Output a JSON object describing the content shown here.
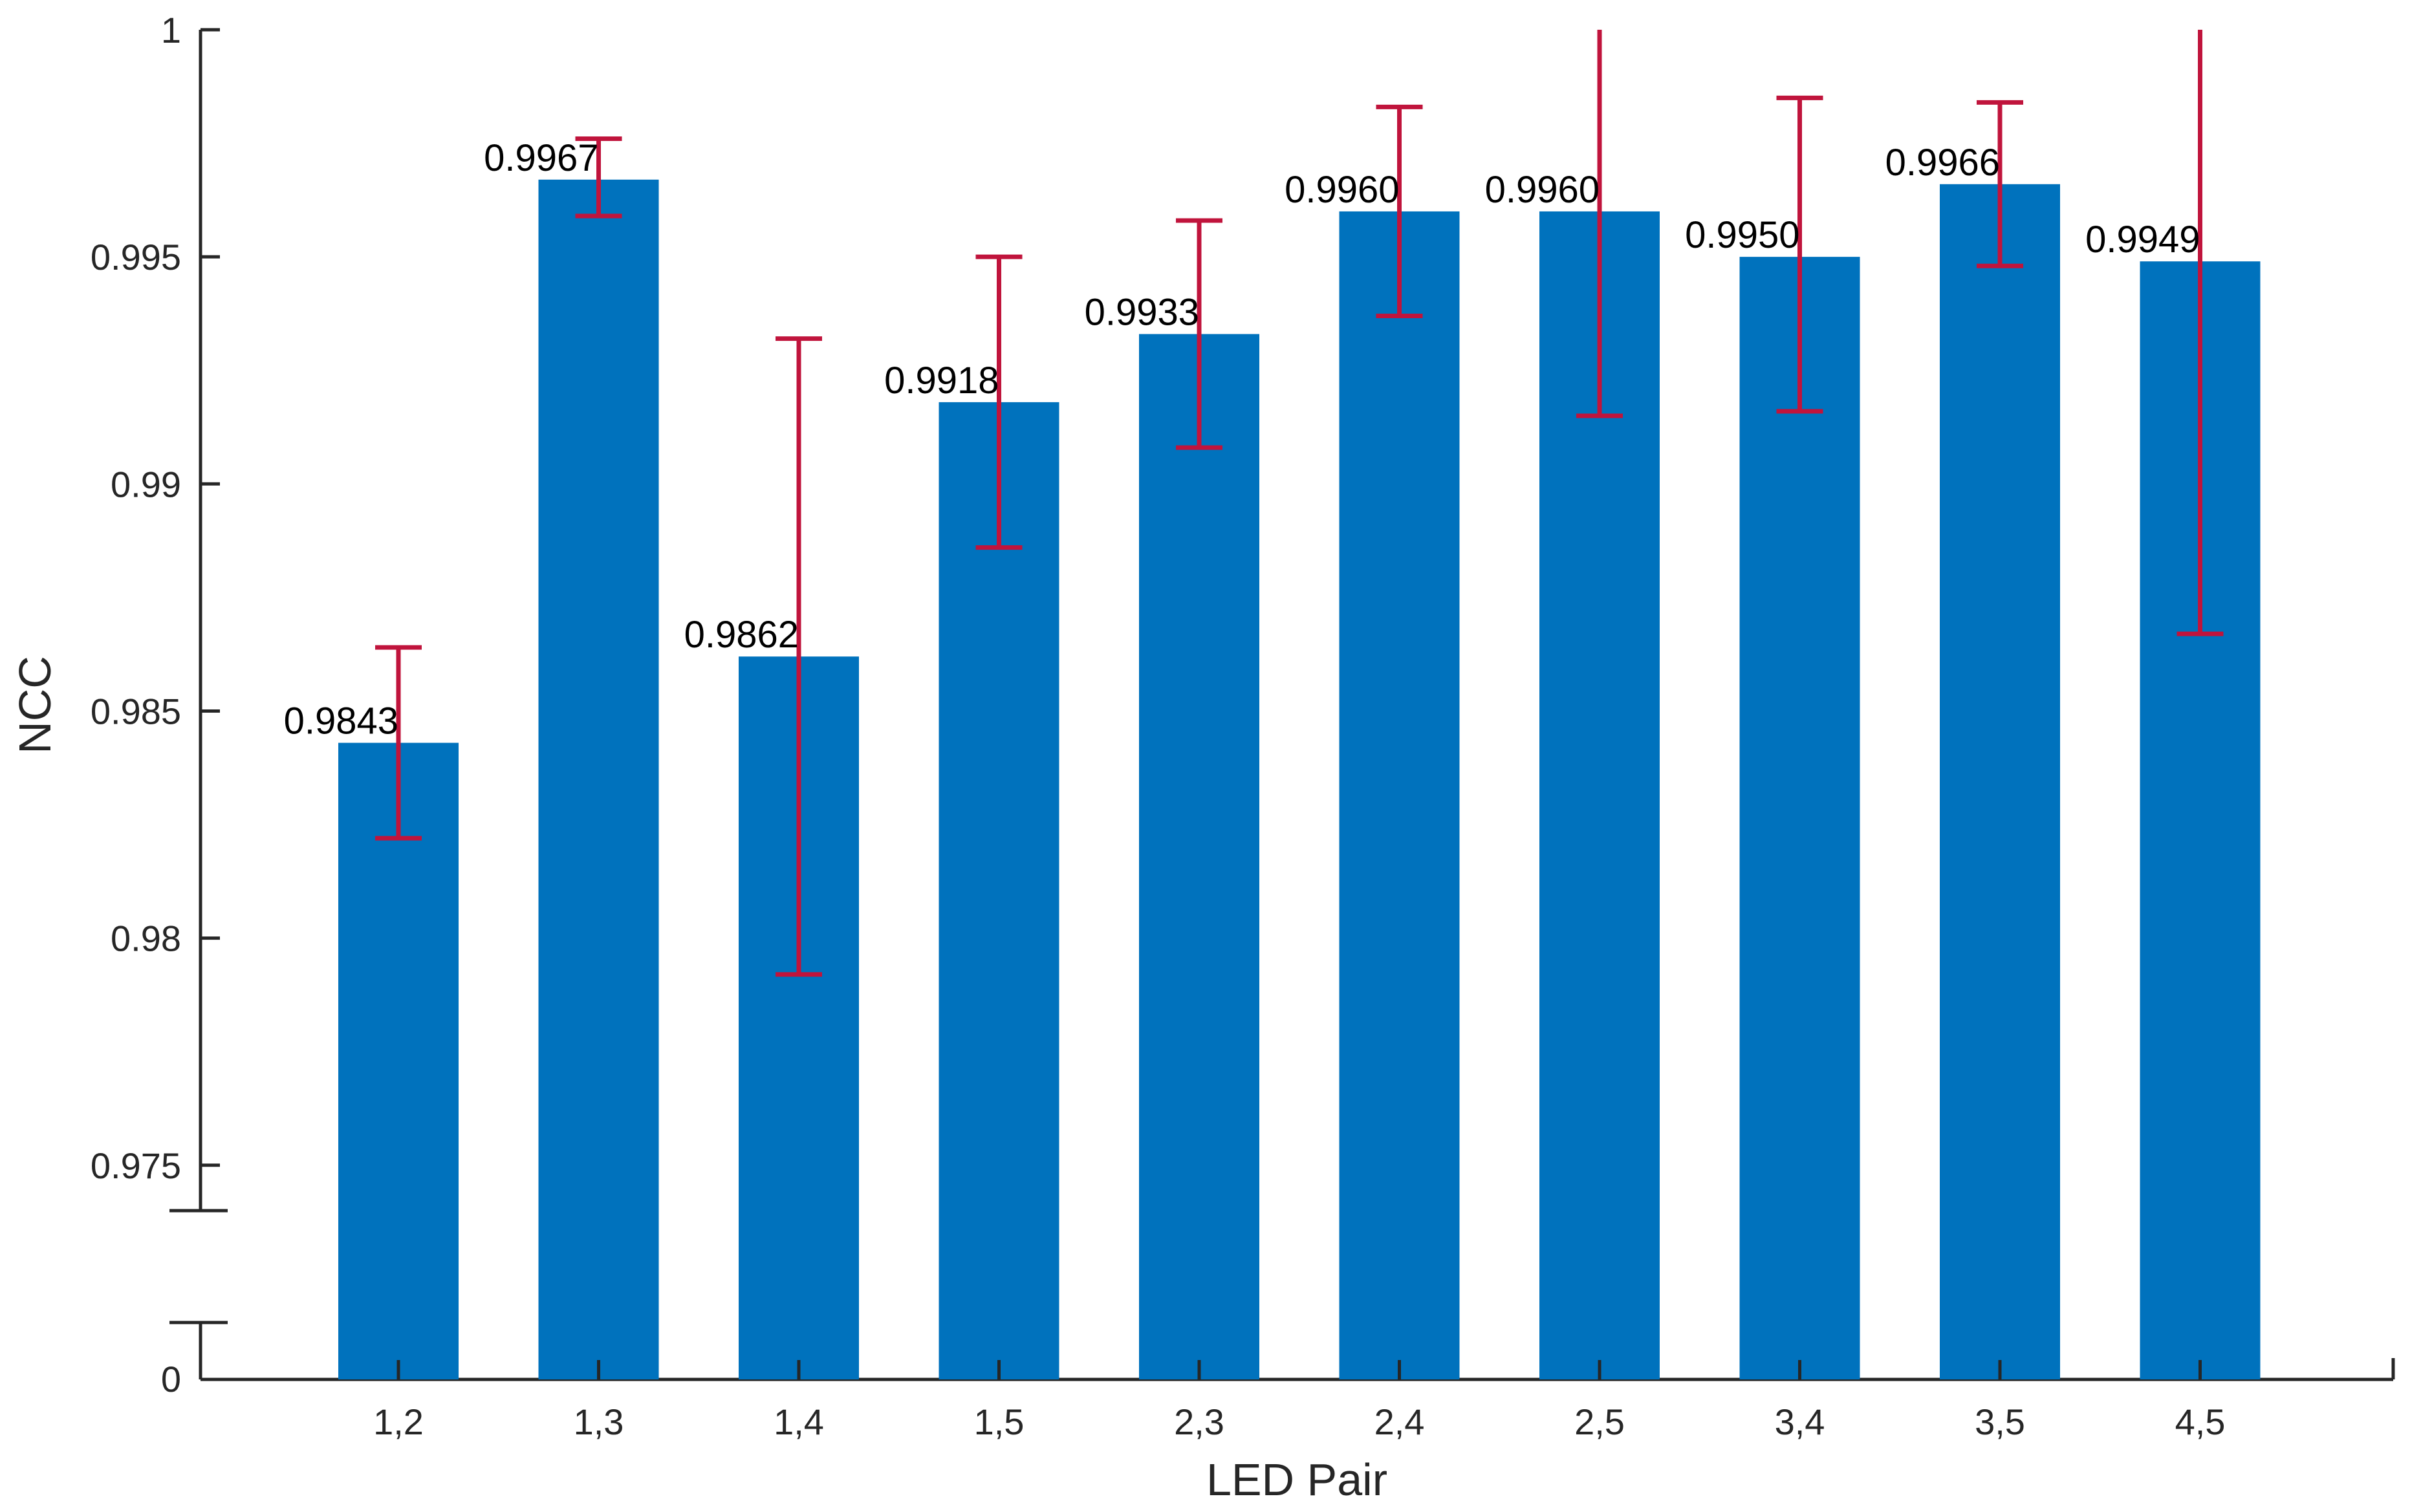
{
  "chart_data": {
    "type": "bar",
    "xlabel": "LED Pair",
    "ylabel": "NCC",
    "categories": [
      "1,2",
      "1,3",
      "1,4",
      "1,5",
      "2,3",
      "2,4",
      "2,5",
      "3,4",
      "3,5",
      "4,5"
    ],
    "values": [
      0.9843,
      0.9967,
      0.9862,
      0.9918,
      0.9933,
      0.996,
      0.996,
      0.995,
      0.9966,
      0.9949
    ],
    "value_labels": [
      "0.9843",
      "0.9967",
      "0.9862",
      "0.9918",
      "0.9933",
      "0.9960",
      "0.9960",
      "0.9950",
      "0.9966",
      "0.9949"
    ],
    "error_low": [
      0.9822,
      0.9959,
      0.9792,
      0.9886,
      0.9908,
      0.9937,
      0.9915,
      0.9916,
      0.9948,
      0.9867
    ],
    "error_high": [
      0.9864,
      0.9976,
      0.9932,
      0.995,
      0.9958,
      0.9983,
      1.0,
      0.9985,
      0.9984,
      1.0
    ],
    "ylim": [
      0.974,
      1.0
    ],
    "y_axis_break": true,
    "y_ticks": [
      {
        "value": 0.975,
        "label": "0.975"
      },
      {
        "value": 0.98,
        "label": "0.98"
      },
      {
        "value": 0.985,
        "label": "0.985"
      },
      {
        "value": 0.99,
        "label": "0.99"
      },
      {
        "value": 0.995,
        "label": "0.995"
      },
      {
        "value": 1.0,
        "label": "1"
      }
    ],
    "y_zero_label": "0",
    "bar_color": "#0072BD",
    "error_color": "#C0143C",
    "grid": false,
    "legend": "none"
  }
}
